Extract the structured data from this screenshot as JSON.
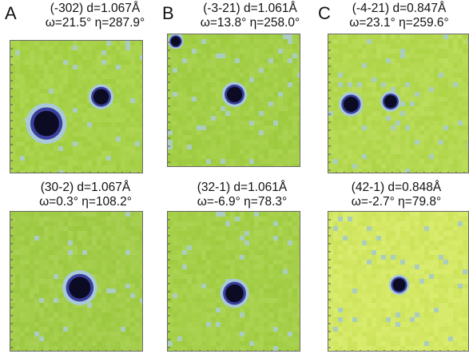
{
  "column_labels": [
    "A",
    "B",
    "C"
  ],
  "panels": [
    {
      "line1": "(-302) d=1.067Å",
      "line2": "ω=21.5° η=287.9°",
      "bg": "#a8d24a",
      "spots": [
        {
          "dx": 0.27,
          "dy": 0.62,
          "r": 0.105
        },
        {
          "dx": 0.68,
          "dy": 0.42,
          "r": 0.065
        }
      ],
      "corner_spot": false
    },
    {
      "line1": "(-3-21) d=1.061Å",
      "line2": "ω=13.8° η=258.0°",
      "bg": "#a4cf48",
      "spots": [
        {
          "dx": 0.5,
          "dy": 0.43,
          "r": 0.065
        }
      ],
      "corner_spot": true
    },
    {
      "line1": "(-4-21) d=0.847Å",
      "line2": "ω=23.1° η=259.6°",
      "bg": "#b5d952",
      "spots": [
        {
          "dx": 0.16,
          "dy": 0.5,
          "r": 0.06
        },
        {
          "dx": 0.44,
          "dy": 0.48,
          "r": 0.05
        }
      ],
      "corner_spot": false
    },
    {
      "line1": "(30-2) d=1.067Å",
      "line2": "ω=0.3° η=108.2°",
      "bg": "#a3cd4a",
      "spots": [
        {
          "dx": 0.52,
          "dy": 0.54,
          "r": 0.09
        }
      ],
      "corner_spot": false
    },
    {
      "line1": "(32-1) d=1.061Å",
      "line2": "ω=-6.9° η=78.3°",
      "bg": "#a6d04a",
      "spots": [
        {
          "dx": 0.5,
          "dy": 0.58,
          "r": 0.075
        }
      ],
      "corner_spot": false
    },
    {
      "line1": "(42-1) d=0.848Å",
      "line2": "ω=-2.7° η=79.8°",
      "bg": "#d4e865",
      "spots": [
        {
          "dx": 0.5,
          "dy": 0.52,
          "r": 0.05
        }
      ],
      "corner_spot": false
    }
  ],
  "colors": {
    "spot_core": "#0b0b24",
    "spot_mid": "#3b3f9e",
    "spot_halo": "#a8c9d9"
  }
}
